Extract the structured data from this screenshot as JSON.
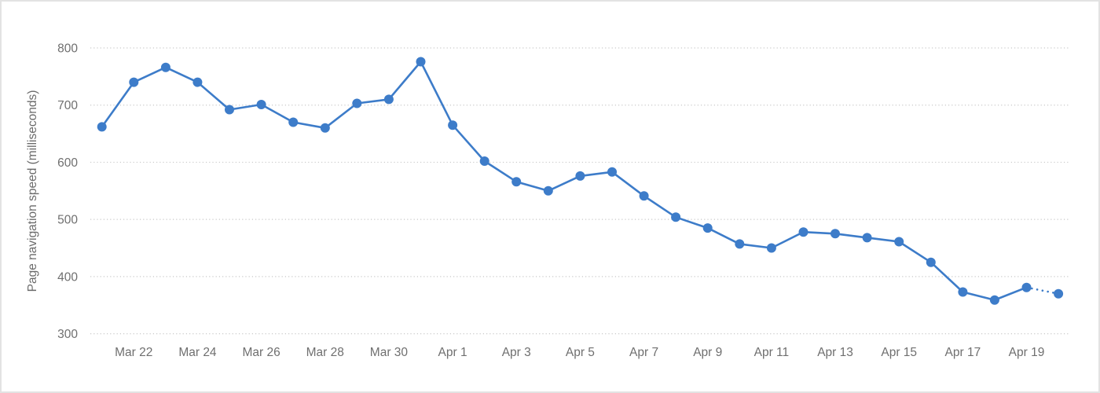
{
  "chart_data": {
    "type": "line",
    "title": "",
    "xlabel": "",
    "ylabel": "Page navigation speed (milliseconds)",
    "ylim": [
      300,
      800
    ],
    "y_ticks": [
      800,
      700,
      600,
      500,
      400,
      300
    ],
    "grid": "horizontal dotted gridlines on, no vertical grid",
    "legend_position": "none",
    "series": [
      {
        "name": "Page navigation speed",
        "categories": [
          "Mar 21",
          "Mar 22",
          "Mar 23",
          "Mar 24",
          "Mar 25",
          "Mar 26",
          "Mar 27",
          "Mar 28",
          "Mar 29",
          "Mar 30",
          "Mar 31",
          "Apr 1",
          "Apr 2",
          "Apr 3",
          "Apr 4",
          "Apr 5",
          "Apr 6",
          "Apr 7",
          "Apr 8",
          "Apr 9",
          "Apr 10",
          "Apr 11",
          "Apr 12",
          "Apr 13",
          "Apr 14",
          "Apr 15",
          "Apr 16",
          "Apr 17",
          "Apr 18",
          "Apr 19",
          "Apr 20"
        ],
        "values": [
          662,
          740,
          766,
          740,
          692,
          701,
          670,
          660,
          703,
          710,
          776,
          665,
          602,
          566,
          550,
          576,
          583,
          541,
          504,
          485,
          457,
          450,
          478,
          475,
          468,
          461,
          425,
          373,
          359,
          381,
          370
        ],
        "last_segment_dotted": true
      }
    ],
    "x_ticks": [
      {
        "index": 1,
        "label": "Mar 22"
      },
      {
        "index": 3,
        "label": "Mar 24"
      },
      {
        "index": 5,
        "label": "Mar 26"
      },
      {
        "index": 7,
        "label": "Mar 28"
      },
      {
        "index": 9,
        "label": "Mar 30"
      },
      {
        "index": 11,
        "label": "Apr 1"
      },
      {
        "index": 13,
        "label": "Apr 3"
      },
      {
        "index": 15,
        "label": "Apr 5"
      },
      {
        "index": 17,
        "label": "Apr 7"
      },
      {
        "index": 19,
        "label": "Apr 9"
      },
      {
        "index": 21,
        "label": "Apr 11"
      },
      {
        "index": 23,
        "label": "Apr 13"
      },
      {
        "index": 25,
        "label": "Apr 15"
      },
      {
        "index": 27,
        "label": "Apr 17"
      },
      {
        "index": 29,
        "label": "Apr 19"
      }
    ],
    "colors": {
      "line": "#3d7cc9",
      "marker": "#3d7cc9",
      "gridline": "#c9c9c9",
      "axis_text": "#6f6f6f",
      "background": "#ffffff",
      "card_border": "#e3e3e3"
    }
  }
}
